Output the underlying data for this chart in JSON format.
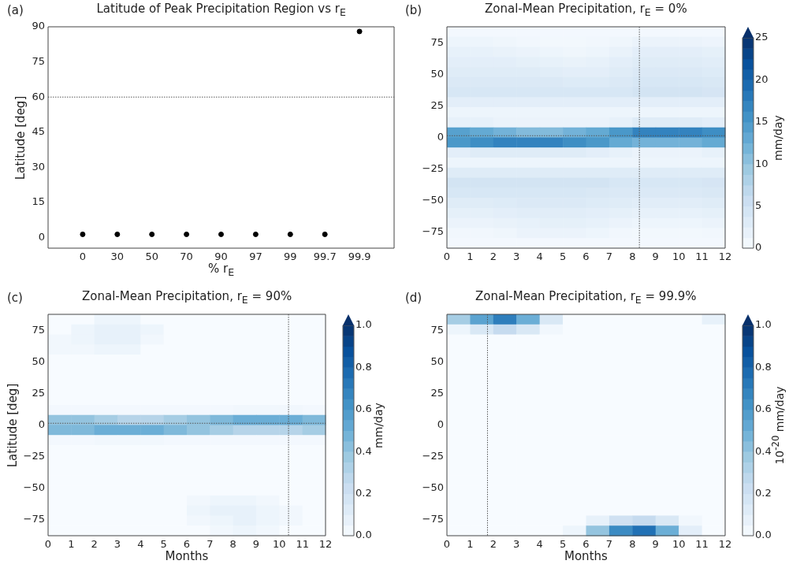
{
  "chart_data": [
    {
      "type": "scatter",
      "title": "Latitude of Peak Precipitation Region vs r$_{E}$",
      "xlabel": "% r$_{E}$",
      "ylabel": "Latitude [deg]",
      "annotations": [
        "(a)"
      ],
      "categories": [
        "0",
        "30",
        "50",
        "70",
        "90",
        "97",
        "99",
        "99.7",
        "99.9"
      ],
      "values": [
        1.4,
        1.4,
        1.4,
        1.4,
        1.4,
        1.4,
        1.4,
        1.4,
        88
      ],
      "color": "#000000",
      "marker": "circle",
      "ylim": [
        -4.5,
        90
      ],
      "yticks": [
        0,
        15,
        30,
        45,
        60,
        75,
        90
      ],
      "ref_lines": [
        {
          "axis": "y",
          "value": 60,
          "color": "#555555",
          "line_style": "dotted"
        }
      ]
    },
    {
      "type": "scatter",
      "title": "Zonal-Mean Precipitation, r$_{E}$ = 0%",
      "annotations": [
        "(b)"
      ],
      "clabel": "mm/day",
      "marker": "square",
      "xlim": [
        0,
        12
      ],
      "xticks": [
        0,
        1,
        2,
        3,
        4,
        5,
        6,
        7,
        8,
        9,
        10,
        11,
        12
      ],
      "ylim": [
        -88,
        88
      ],
      "yticks": [
        {
          "value": -75,
          "label": "−75"
        },
        {
          "value": -50,
          "label": "−50"
        },
        {
          "value": -25,
          "label": "−25"
        },
        0,
        25,
        50,
        75
      ],
      "clim": [
        0,
        25
      ],
      "cticks": [
        0,
        5,
        10,
        15,
        20,
        25
      ],
      "ref_lines": [
        {
          "axis": "x",
          "value": 8.3,
          "color": "#555555",
          "line_style": "dotted"
        },
        {
          "axis": "y",
          "value": 1.4,
          "color": "#555555",
          "line_style": "dotted"
        }
      ],
      "x": [
        0.5,
        1.5,
        2.5,
        3.5,
        4.5,
        5.5,
        6.5,
        7.5,
        8.5,
        9.5,
        10.5,
        11.5,
        0.5,
        1.5,
        2.5,
        3.5,
        4.5,
        5.5,
        6.5,
        7.5,
        8.5,
        9.5,
        10.5,
        11.5,
        0.5,
        1.5,
        2.5,
        3.5,
        4.5,
        5.5,
        6.5,
        7.5,
        8.5,
        9.5,
        10.5,
        11.5,
        0.5,
        1.5,
        2.5,
        3.5,
        4.5,
        5.5,
        6.5,
        7.5,
        8.5,
        9.5,
        10.5,
        11.5,
        0.5,
        1.5,
        2.5,
        3.5,
        4.5,
        5.5,
        6.5,
        7.5,
        8.5,
        9.5,
        10.5,
        11.5,
        0.5,
        1.5,
        2.5,
        3.5,
        4.5,
        5.5,
        6.5,
        7.5,
        8.5,
        9.5,
        10.5,
        11.5,
        0.5,
        1.5,
        2.5,
        3.5,
        4.5,
        5.5,
        6.5,
        7.5,
        8.5,
        9.5,
        10.5,
        11.5,
        0.5,
        1.5,
        2.5,
        3.5,
        4.5,
        5.5,
        6.5,
        7.5,
        8.5,
        9.5,
        10.5,
        11.5,
        0.5,
        1.5,
        2.5,
        3.5,
        4.5,
        5.5,
        6.5,
        7.5,
        8.5,
        9.5,
        10.5,
        11.5,
        0.5,
        1.5,
        2.5,
        3.5,
        4.5,
        5.5,
        6.5,
        7.5,
        8.5,
        9.5,
        10.5,
        11.5,
        0.5,
        1.5,
        2.5,
        3.5,
        4.5,
        5.5,
        6.5,
        7.5,
        8.5,
        9.5,
        10.5,
        11.5,
        0.5,
        1.5,
        2.5,
        3.5,
        4.5,
        5.5,
        6.5,
        7.5,
        8.5,
        9.5,
        10.5,
        11.5,
        0.5,
        1.5,
        2.5,
        3.5,
        4.5,
        5.5,
        6.5,
        7.5,
        8.5,
        9.5,
        10.5,
        11.5,
        0.5,
        1.5,
        2.5,
        3.5,
        4.5,
        5.5,
        6.5,
        7.5,
        8.5,
        9.5,
        10.5,
        11.5,
        0.5,
        1.5,
        2.5,
        3.5,
        4.5,
        5.5,
        6.5,
        7.5,
        8.5,
        9.5,
        10.5,
        11.5,
        0.5,
        1.5,
        2.5,
        3.5,
        4.5,
        5.5,
        6.5,
        7.5,
        8.5,
        9.5,
        10.5,
        11.5,
        0.5,
        1.5,
        2.5,
        3.5,
        4.5,
        5.5,
        6.5,
        7.5,
        8.5,
        9.5,
        10.5,
        11.5,
        0.5,
        1.5,
        2.5,
        3.5,
        4.5,
        5.5,
        6.5,
        7.5,
        8.5,
        9.5,
        10.5,
        11.5,
        0.5,
        1.5,
        2.5,
        3.5,
        4.5,
        5.5,
        6.5,
        7.5,
        8.5,
        9.5,
        10.5,
        11.5,
        0.5,
        1.5,
        2.5,
        3.5,
        4.5,
        5.5,
        6.5,
        7.5,
        8.5,
        9.5,
        10.5,
        11.5,
        0.5,
        1.5,
        2.5,
        3.5,
        4.5,
        5.5,
        6.5,
        7.5,
        8.5,
        9.5,
        10.5,
        11.5,
        0.5,
        1.5,
        2.5,
        3.5,
        4.5,
        5.5,
        6.5,
        7.5,
        8.5,
        9.5,
        10.5,
        11.5
      ],
      "values": [
        84,
        84,
        84,
        84,
        84,
        84,
        84,
        84,
        84,
        84,
        84,
        84,
        76,
        76,
        76,
        76,
        76,
        76,
        76,
        76,
        76,
        76,
        76,
        76,
        68,
        68,
        68,
        68,
        68,
        68,
        68,
        68,
        68,
        68,
        68,
        68,
        60,
        60,
        60,
        60,
        60,
        60,
        60,
        60,
        60,
        60,
        60,
        60,
        52,
        52,
        52,
        52,
        52,
        52,
        52,
        52,
        52,
        52,
        52,
        52,
        44,
        44,
        44,
        44,
        44,
        44,
        44,
        44,
        44,
        44,
        44,
        44,
        36,
        36,
        36,
        36,
        36,
        36,
        36,
        36,
        36,
        36,
        36,
        36,
        28,
        28,
        28,
        28,
        28,
        28,
        28,
        28,
        28,
        28,
        28,
        28,
        20,
        20,
        20,
        20,
        20,
        20,
        20,
        20,
        20,
        20,
        20,
        20,
        12,
        12,
        12,
        12,
        12,
        12,
        12,
        12,
        12,
        12,
        12,
        12,
        4,
        4,
        4,
        4,
        4,
        4,
        4,
        4,
        4,
        4,
        4,
        4,
        -4,
        -4,
        -4,
        -4,
        -4,
        -4,
        -4,
        -4,
        -4,
        -4,
        -4,
        -4,
        -12,
        -12,
        -12,
        -12,
        -12,
        -12,
        -12,
        -12,
        -12,
        -12,
        -12,
        -12,
        -20,
        -20,
        -20,
        -20,
        -20,
        -20,
        -20,
        -20,
        -20,
        -20,
        -20,
        -20,
        -28,
        -28,
        -28,
        -28,
        -28,
        -28,
        -28,
        -28,
        -28,
        -28,
        -28,
        -28,
        -36,
        -36,
        -36,
        -36,
        -36,
        -36,
        -36,
        -36,
        -36,
        -36,
        -36,
        -36,
        -44,
        -44,
        -44,
        -44,
        -44,
        -44,
        -44,
        -44,
        -44,
        -44,
        -44,
        -44,
        -52,
        -52,
        -52,
        -52,
        -52,
        -52,
        -52,
        -52,
        -52,
        -52,
        -52,
        -52,
        -60,
        -60,
        -60,
        -60,
        -60,
        -60,
        -60,
        -60,
        -60,
        -60,
        -60,
        -60,
        -68,
        -68,
        -68,
        -68,
        -68,
        -68,
        -68,
        -68,
        -68,
        -68,
        -68,
        -68,
        -76,
        -76,
        -76,
        -76,
        -76,
        -76,
        -76,
        -76,
        -76,
        -76,
        -76,
        -76,
        -84,
        -84,
        -84,
        -84,
        -84,
        -84,
        -84,
        -84,
        -84,
        -84,
        -84,
        -84
      ],
      "cvalues": [
        0.5,
        0.5,
        0.5,
        0.5,
        0.5,
        0.5,
        0.5,
        0.5,
        0.5,
        0.5,
        0.5,
        0.5,
        1.2,
        1.2,
        1,
        0.8,
        0.6,
        0.6,
        0.8,
        1,
        1.5,
        1.5,
        1.5,
        1.3,
        2,
        2,
        1.8,
        1.5,
        1.2,
        1,
        1.2,
        1.8,
        2.5,
        2.5,
        2.5,
        2.2,
        2.5,
        2.5,
        2.5,
        2.2,
        2,
        1.8,
        2,
        2.5,
        3,
        3,
        3,
        2.8,
        3,
        3,
        3,
        3,
        2.8,
        2.5,
        2.5,
        3,
        3.5,
        3.5,
        3.5,
        3.2,
        3.5,
        3.5,
        3.5,
        3.5,
        3.5,
        3.2,
        3.2,
        3.5,
        4,
        4,
        4,
        3.8,
        4,
        4,
        4,
        4,
        4,
        4,
        4,
        4,
        4.5,
        4.5,
        4.5,
        4.2,
        2.5,
        2.5,
        2.5,
        2.5,
        2.5,
        2.5,
        2.5,
        2.5,
        2.5,
        2.5,
        2.5,
        2.5,
        1.2,
        1.2,
        1.2,
        1.2,
        1.2,
        1.2,
        1.2,
        1.2,
        1.2,
        1.2,
        1.2,
        1.2,
        2,
        2,
        1.5,
        1.5,
        1.5,
        1.5,
        1.5,
        2,
        3,
        3,
        3,
        2.5,
        14,
        13,
        12,
        11,
        11,
        12,
        13,
        15,
        17,
        17,
        17,
        16,
        15,
        16,
        17,
        17,
        17,
        16,
        15,
        13,
        12,
        12,
        12,
        13,
        2.5,
        3,
        3,
        3,
        3,
        3,
        2.5,
        2,
        1.5,
        1.5,
        1.5,
        2,
        1.2,
        1.2,
        1.2,
        1.2,
        1.2,
        1.2,
        1.2,
        1.2,
        1.2,
        1.2,
        1.2,
        1.2,
        3,
        3,
        3,
        3,
        3,
        3,
        3,
        3,
        3,
        3,
        3,
        3,
        4.5,
        4.5,
        4.5,
        4.5,
        4.5,
        4.5,
        4.5,
        4,
        4,
        4,
        4,
        4.2,
        4,
        4,
        4,
        4,
        4,
        4,
        3.8,
        3.5,
        3.5,
        3.5,
        3.5,
        3.8,
        3,
        3,
        3.2,
        3.5,
        3.5,
        3.5,
        3.2,
        3,
        2.8,
        2.8,
        2.8,
        3,
        2.2,
        2.2,
        2.5,
        2.8,
        2.8,
        2.8,
        2.5,
        2.2,
        2,
        2,
        2,
        2.2,
        1.5,
        1.5,
        1.8,
        2,
        2.2,
        2.2,
        2,
        1.5,
        1.2,
        1.2,
        1.2,
        1.5,
        0.8,
        0.8,
        1,
        1.5,
        1.5,
        1.5,
        1.2,
        0.8,
        0.6,
        0.6,
        0.6,
        0.8,
        0.5,
        0.5,
        0.5,
        0.5,
        0.5,
        0.5,
        0.5,
        0.5,
        0.5,
        0.5,
        0.5,
        0.5
      ]
    },
    {
      "type": "scatter",
      "title": "Zonal-Mean Precipitation, r$_{E}$ = 90%",
      "xlabel": "Months",
      "ylabel": "Latitude [deg]",
      "annotations": [
        "(c)"
      ],
      "clabel": "mm/day",
      "marker": "square",
      "xlim": [
        0,
        12
      ],
      "xticks": [
        0,
        1,
        2,
        3,
        4,
        5,
        6,
        7,
        8,
        9,
        10,
        11,
        12
      ],
      "ylim": [
        -88,
        88
      ],
      "yticks": [
        {
          "value": -75,
          "label": "−75"
        },
        {
          "value": -50,
          "label": "−50"
        },
        {
          "value": -25,
          "label": "−25"
        },
        0,
        25,
        50,
        75
      ],
      "clim": [
        0,
        1
      ],
      "cticks": [
        {
          "value": 0,
          "label": "0.0"
        },
        {
          "value": 0.2,
          "label": "0.2"
        },
        {
          "value": 0.4,
          "label": "0.4"
        },
        {
          "value": 0.6,
          "label": "0.6"
        },
        {
          "value": 0.8,
          "label": "0.8"
        },
        {
          "value": 1,
          "label": "1.0"
        }
      ],
      "ref_lines": [
        {
          "axis": "x",
          "value": 10.4,
          "color": "#555555",
          "line_style": "dotted"
        },
        {
          "axis": "y",
          "value": 1.4,
          "color": "#555555",
          "line_style": "dotted"
        }
      ],
      "x": [
        0.5,
        1.5,
        2.5,
        3.5,
        4.5,
        5.5,
        6.5,
        7.5,
        8.5,
        9.5,
        10.5,
        11.5,
        0.5,
        1.5,
        2.5,
        3.5,
        4.5,
        5.5,
        6.5,
        7.5,
        8.5,
        9.5,
        10.5,
        11.5,
        0.5,
        1.5,
        2.5,
        3.5,
        4.5,
        5.5,
        6.5,
        7.5,
        8.5,
        9.5,
        10.5,
        11.5,
        0.5,
        1.5,
        2.5,
        3.5,
        4.5,
        5.5,
        6.5,
        7.5,
        8.5,
        9.5,
        10.5,
        11.5,
        0.5,
        1.5,
        2.5,
        3.5,
        4.5,
        5.5,
        6.5,
        7.5,
        8.5,
        9.5,
        10.5,
        11.5,
        0.5,
        1.5,
        2.5,
        3.5,
        4.5,
        5.5,
        6.5,
        7.5,
        8.5,
        9.5,
        10.5,
        11.5,
        0.5,
        1.5,
        2.5,
        3.5,
        4.5,
        5.5,
        6.5,
        7.5,
        8.5,
        9.5,
        10.5,
        11.5,
        0.5,
        1.5,
        2.5,
        3.5,
        4.5,
        5.5,
        6.5,
        7.5,
        8.5,
        9.5,
        10.5,
        11.5,
        0.5,
        1.5,
        2.5,
        3.5,
        4.5,
        5.5,
        6.5,
        7.5,
        8.5,
        9.5,
        10.5,
        11.5,
        0.5,
        1.5,
        2.5,
        3.5,
        4.5,
        5.5,
        6.5,
        7.5,
        8.5,
        9.5,
        10.5,
        11.5,
        0.5,
        1.5,
        2.5,
        3.5,
        4.5,
        5.5,
        6.5,
        7.5,
        8.5,
        9.5,
        10.5,
        11.5,
        0.5,
        1.5,
        2.5,
        3.5,
        4.5,
        5.5,
        6.5,
        7.5,
        8.5,
        9.5,
        10.5,
        11.5,
        0.5,
        1.5,
        2.5,
        3.5,
        4.5,
        5.5,
        6.5,
        7.5,
        8.5,
        9.5,
        10.5,
        11.5,
        0.5,
        1.5,
        2.5,
        3.5,
        4.5,
        5.5,
        6.5,
        7.5,
        8.5,
        9.5,
        10.5,
        11.5,
        0.5,
        1.5,
        2.5,
        3.5,
        4.5,
        5.5,
        6.5,
        7.5,
        8.5,
        9.5,
        10.5,
        11.5,
        0.5,
        1.5,
        2.5,
        3.5,
        4.5,
        5.5,
        6.5,
        7.5,
        8.5,
        9.5,
        10.5,
        11.5,
        0.5,
        1.5,
        2.5,
        3.5,
        4.5,
        5.5,
        6.5,
        7.5,
        8.5,
        9.5,
        10.5,
        11.5,
        0.5,
        1.5,
        2.5,
        3.5,
        4.5,
        5.5,
        6.5,
        7.5,
        8.5,
        9.5,
        10.5,
        11.5,
        0.5,
        1.5,
        2.5,
        3.5,
        4.5,
        5.5,
        6.5,
        7.5,
        8.5,
        9.5,
        10.5,
        11.5,
        0.5,
        1.5,
        2.5,
        3.5,
        4.5,
        5.5,
        6.5,
        7.5,
        8.5,
        9.5,
        10.5,
        11.5,
        0.5,
        1.5,
        2.5,
        3.5,
        4.5,
        5.5,
        6.5,
        7.5,
        8.5,
        9.5,
        10.5,
        11.5,
        0.5,
        1.5,
        2.5,
        3.5,
        4.5,
        5.5,
        6.5,
        7.5,
        8.5,
        9.5,
        10.5,
        11.5
      ],
      "values": [
        84,
        84,
        84,
        84,
        84,
        84,
        84,
        84,
        84,
        84,
        84,
        84,
        76,
        76,
        76,
        76,
        76,
        76,
        76,
        76,
        76,
        76,
        76,
        76,
        68,
        68,
        68,
        68,
        68,
        68,
        68,
        68,
        68,
        68,
        68,
        68,
        60,
        60,
        60,
        60,
        60,
        60,
        60,
        60,
        60,
        60,
        60,
        60,
        52,
        52,
        52,
        52,
        52,
        52,
        52,
        52,
        52,
        52,
        52,
        52,
        44,
        44,
        44,
        44,
        44,
        44,
        44,
        44,
        44,
        44,
        44,
        44,
        36,
        36,
        36,
        36,
        36,
        36,
        36,
        36,
        36,
        36,
        36,
        36,
        28,
        28,
        28,
        28,
        28,
        28,
        28,
        28,
        28,
        28,
        28,
        28,
        20,
        20,
        20,
        20,
        20,
        20,
        20,
        20,
        20,
        20,
        20,
        20,
        12,
        12,
        12,
        12,
        12,
        12,
        12,
        12,
        12,
        12,
        12,
        12,
        4,
        4,
        4,
        4,
        4,
        4,
        4,
        4,
        4,
        4,
        4,
        4,
        -4,
        -4,
        -4,
        -4,
        -4,
        -4,
        -4,
        -4,
        -4,
        -4,
        -4,
        -4,
        -12,
        -12,
        -12,
        -12,
        -12,
        -12,
        -12,
        -12,
        -12,
        -12,
        -12,
        -12,
        -20,
        -20,
        -20,
        -20,
        -20,
        -20,
        -20,
        -20,
        -20,
        -20,
        -20,
        -20,
        -28,
        -28,
        -28,
        -28,
        -28,
        -28,
        -28,
        -28,
        -28,
        -28,
        -28,
        -28,
        -36,
        -36,
        -36,
        -36,
        -36,
        -36,
        -36,
        -36,
        -36,
        -36,
        -36,
        -36,
        -44,
        -44,
        -44,
        -44,
        -44,
        -44,
        -44,
        -44,
        -44,
        -44,
        -44,
        -44,
        -52,
        -52,
        -52,
        -52,
        -52,
        -52,
        -52,
        -52,
        -52,
        -52,
        -52,
        -52,
        -60,
        -60,
        -60,
        -60,
        -60,
        -60,
        -60,
        -60,
        -60,
        -60,
        -60,
        -60,
        -68,
        -68,
        -68,
        -68,
        -68,
        -68,
        -68,
        -68,
        -68,
        -68,
        -68,
        -68,
        -76,
        -76,
        -76,
        -76,
        -76,
        -76,
        -76,
        -76,
        -76,
        -76,
        -76,
        -76,
        -84,
        -84,
        -84,
        -84,
        -84,
        -84,
        -84,
        -84,
        -84,
        -84,
        -84,
        -84
      ],
      "cvalues": [
        0,
        0,
        0.05,
        0.05,
        0,
        0,
        0,
        0,
        0,
        0,
        0,
        0,
        0,
        0.05,
        0.08,
        0.08,
        0.05,
        0,
        0,
        0,
        0,
        0,
        0,
        0,
        0.03,
        0.05,
        0.08,
        0.08,
        0.03,
        0,
        0,
        0,
        0,
        0,
        0,
        0,
        0.03,
        0.03,
        0.05,
        0.05,
        0,
        0,
        0,
        0,
        0,
        0,
        0,
        0,
        0,
        0,
        0,
        0,
        0,
        0,
        0,
        0,
        0,
        0,
        0,
        0,
        0,
        0,
        0,
        0,
        0,
        0,
        0,
        0,
        0,
        0,
        0,
        0,
        0,
        0,
        0,
        0,
        0,
        0,
        0,
        0,
        0,
        0,
        0,
        0,
        0,
        0,
        0,
        0,
        0,
        0,
        0,
        0,
        0,
        0,
        0,
        0,
        0,
        0,
        0,
        0,
        0,
        0,
        0,
        0,
        0,
        0,
        0,
        0,
        0.02,
        0.02,
        0.02,
        0.02,
        0.02,
        0.02,
        0.02,
        0.02,
        0.03,
        0.03,
        0.03,
        0.02,
        0.4,
        0.4,
        0.35,
        0.3,
        0.3,
        0.35,
        0.4,
        0.45,
        0.5,
        0.5,
        0.5,
        0.45,
        0.45,
        0.45,
        0.5,
        0.5,
        0.5,
        0.45,
        0.4,
        0.35,
        0.3,
        0.3,
        0.3,
        0.35,
        0.02,
        0.02,
        0.03,
        0.03,
        0.03,
        0.02,
        0.02,
        0.02,
        0.02,
        0.02,
        0.02,
        0.02,
        0,
        0,
        0,
        0,
        0,
        0,
        0,
        0,
        0,
        0,
        0,
        0,
        0,
        0,
        0,
        0,
        0,
        0,
        0,
        0,
        0,
        0,
        0,
        0,
        0,
        0,
        0,
        0,
        0,
        0,
        0,
        0,
        0,
        0,
        0,
        0,
        0,
        0,
        0,
        0,
        0,
        0,
        0,
        0,
        0,
        0,
        0,
        0,
        0,
        0,
        0,
        0,
        0,
        0,
        0,
        0,
        0,
        0,
        0,
        0,
        0,
        0,
        0,
        0,
        0,
        0,
        0.03,
        0.05,
        0.05,
        0.03,
        0,
        0,
        0,
        0,
        0,
        0,
        0,
        0,
        0.05,
        0.08,
        0.08,
        0.05,
        0.03,
        0,
        0,
        0,
        0,
        0,
        0,
        0,
        0.03,
        0.05,
        0.08,
        0.05,
        0.03,
        0,
        0,
        0,
        0,
        0,
        0,
        0,
        0,
        0.03,
        0.05,
        0.03,
        0,
        0
      ]
    },
    {
      "type": "scatter",
      "title": "Zonal-Mean Precipitation, r$_{E}$ = 99.9%",
      "xlabel": "Months",
      "annotations": [
        "(d)"
      ],
      "clabel": "10$^{-20}$ mm/day",
      "marker": "square",
      "xlim": [
        0,
        12
      ],
      "xticks": [
        0,
        1,
        2,
        3,
        4,
        5,
        6,
        7,
        8,
        9,
        10,
        11,
        12
      ],
      "ylim": [
        -88,
        88
      ],
      "yticks": [
        {
          "value": -75,
          "label": "−75"
        },
        {
          "value": -50,
          "label": "−50"
        },
        {
          "value": -25,
          "label": "−25"
        },
        0,
        25,
        50,
        75
      ],
      "clim": [
        0,
        1
      ],
      "cticks": [
        {
          "value": 0,
          "label": "0.0"
        },
        {
          "value": 0.2,
          "label": "0.2"
        },
        {
          "value": 0.4,
          "label": "0.4"
        },
        {
          "value": 0.6,
          "label": "0.6"
        },
        {
          "value": 0.8,
          "label": "0.8"
        },
        {
          "value": 1,
          "label": "1.0"
        }
      ],
      "ref_lines": [
        {
          "axis": "x",
          "value": 1.75,
          "color": "#555555",
          "line_style": "dotted"
        }
      ],
      "x": [
        0.5,
        1.5,
        2.5,
        3.5,
        4.5,
        5.5,
        6.5,
        7.5,
        8.5,
        9.5,
        10.5,
        11.5,
        0.5,
        1.5,
        2.5,
        3.5,
        4.5,
        5.5,
        6.5,
        7.5,
        8.5,
        9.5,
        10.5,
        11.5,
        0.5,
        1.5,
        2.5,
        3.5,
        4.5,
        5.5,
        6.5,
        7.5,
        8.5,
        9.5,
        10.5,
        11.5,
        0.5,
        1.5,
        2.5,
        3.5,
        4.5,
        5.5,
        6.5,
        7.5,
        8.5,
        9.5,
        10.5,
        11.5,
        0.5,
        1.5,
        2.5,
        3.5,
        4.5,
        5.5,
        6.5,
        7.5,
        8.5,
        9.5,
        10.5,
        11.5,
        0.5,
        1.5,
        2.5,
        3.5,
        4.5,
        5.5,
        6.5,
        7.5,
        8.5,
        9.5,
        10.5,
        11.5,
        0.5,
        1.5,
        2.5,
        3.5,
        4.5,
        5.5,
        6.5,
        7.5,
        8.5,
        9.5,
        10.5,
        11.5,
        0.5,
        1.5,
        2.5,
        3.5,
        4.5,
        5.5,
        6.5,
        7.5,
        8.5,
        9.5,
        10.5,
        11.5,
        0.5,
        1.5,
        2.5,
        3.5,
        4.5,
        5.5,
        6.5,
        7.5,
        8.5,
        9.5,
        10.5,
        11.5,
        0.5,
        1.5,
        2.5,
        3.5,
        4.5,
        5.5,
        6.5,
        7.5,
        8.5,
        9.5,
        10.5,
        11.5,
        0.5,
        1.5,
        2.5,
        3.5,
        4.5,
        5.5,
        6.5,
        7.5,
        8.5,
        9.5,
        10.5,
        11.5,
        0.5,
        1.5,
        2.5,
        3.5,
        4.5,
        5.5,
        6.5,
        7.5,
        8.5,
        9.5,
        10.5,
        11.5,
        0.5,
        1.5,
        2.5,
        3.5,
        4.5,
        5.5,
        6.5,
        7.5,
        8.5,
        9.5,
        10.5,
        11.5,
        0.5,
        1.5,
        2.5,
        3.5,
        4.5,
        5.5,
        6.5,
        7.5,
        8.5,
        9.5,
        10.5,
        11.5,
        0.5,
        1.5,
        2.5,
        3.5,
        4.5,
        5.5,
        6.5,
        7.5,
        8.5,
        9.5,
        10.5,
        11.5,
        0.5,
        1.5,
        2.5,
        3.5,
        4.5,
        5.5,
        6.5,
        7.5,
        8.5,
        9.5,
        10.5,
        11.5,
        0.5,
        1.5,
        2.5,
        3.5,
        4.5,
        5.5,
        6.5,
        7.5,
        8.5,
        9.5,
        10.5,
        11.5,
        0.5,
        1.5,
        2.5,
        3.5,
        4.5,
        5.5,
        6.5,
        7.5,
        8.5,
        9.5,
        10.5,
        11.5,
        0.5,
        1.5,
        2.5,
        3.5,
        4.5,
        5.5,
        6.5,
        7.5,
        8.5,
        9.5,
        10.5,
        11.5,
        0.5,
        1.5,
        2.5,
        3.5,
        4.5,
        5.5,
        6.5,
        7.5,
        8.5,
        9.5,
        10.5,
        11.5,
        0.5,
        1.5,
        2.5,
        3.5,
        4.5,
        5.5,
        6.5,
        7.5,
        8.5,
        9.5,
        10.5,
        11.5,
        0.5,
        1.5,
        2.5,
        3.5,
        4.5,
        5.5,
        6.5,
        7.5,
        8.5,
        9.5,
        10.5,
        11.5
      ],
      "values": [
        84,
        84,
        84,
        84,
        84,
        84,
        84,
        84,
        84,
        84,
        84,
        84,
        76,
        76,
        76,
        76,
        76,
        76,
        76,
        76,
        76,
        76,
        76,
        76,
        68,
        68,
        68,
        68,
        68,
        68,
        68,
        68,
        68,
        68,
        68,
        68,
        60,
        60,
        60,
        60,
        60,
        60,
        60,
        60,
        60,
        60,
        60,
        60,
        52,
        52,
        52,
        52,
        52,
        52,
        52,
        52,
        52,
        52,
        52,
        52,
        44,
        44,
        44,
        44,
        44,
        44,
        44,
        44,
        44,
        44,
        44,
        44,
        36,
        36,
        36,
        36,
        36,
        36,
        36,
        36,
        36,
        36,
        36,
        36,
        28,
        28,
        28,
        28,
        28,
        28,
        28,
        28,
        28,
        28,
        28,
        28,
        20,
        20,
        20,
        20,
        20,
        20,
        20,
        20,
        20,
        20,
        20,
        20,
        12,
        12,
        12,
        12,
        12,
        12,
        12,
        12,
        12,
        12,
        12,
        12,
        4,
        4,
        4,
        4,
        4,
        4,
        4,
        4,
        4,
        4,
        4,
        4,
        -4,
        -4,
        -4,
        -4,
        -4,
        -4,
        -4,
        -4,
        -4,
        -4,
        -4,
        -4,
        -12,
        -12,
        -12,
        -12,
        -12,
        -12,
        -12,
        -12,
        -12,
        -12,
        -12,
        -12,
        -20,
        -20,
        -20,
        -20,
        -20,
        -20,
        -20,
        -20,
        -20,
        -20,
        -20,
        -20,
        -28,
        -28,
        -28,
        -28,
        -28,
        -28,
        -28,
        -28,
        -28,
        -28,
        -28,
        -28,
        -36,
        -36,
        -36,
        -36,
        -36,
        -36,
        -36,
        -36,
        -36,
        -36,
        -36,
        -36,
        -44,
        -44,
        -44,
        -44,
        -44,
        -44,
        -44,
        -44,
        -44,
        -44,
        -44,
        -44,
        -52,
        -52,
        -52,
        -52,
        -52,
        -52,
        -52,
        -52,
        -52,
        -52,
        -52,
        -52,
        -60,
        -60,
        -60,
        -60,
        -60,
        -60,
        -60,
        -60,
        -60,
        -60,
        -60,
        -60,
        -68,
        -68,
        -68,
        -68,
        -68,
        -68,
        -68,
        -68,
        -68,
        -68,
        -68,
        -68,
        -76,
        -76,
        -76,
        -76,
        -76,
        -76,
        -76,
        -76,
        -76,
        -76,
        -76,
        -76,
        -84,
        -84,
        -84,
        -84,
        -84,
        -84,
        -84,
        -84,
        -84,
        -84,
        -84,
        -84
      ],
      "cvalues": [
        0.35,
        0.55,
        0.7,
        0.5,
        0.15,
        0,
        0,
        0,
        0,
        0,
        0,
        0.08,
        0.05,
        0.15,
        0.25,
        0.15,
        0.03,
        0,
        0,
        0,
        0,
        0,
        0,
        0,
        0,
        0,
        0,
        0,
        0,
        0,
        0,
        0,
        0,
        0,
        0,
        0,
        0,
        0,
        0,
        0,
        0,
        0,
        0,
        0,
        0,
        0,
        0,
        0,
        0,
        0,
        0,
        0,
        0,
        0,
        0,
        0,
        0,
        0,
        0,
        0,
        0,
        0,
        0,
        0,
        0,
        0,
        0,
        0,
        0,
        0,
        0,
        0,
        0,
        0,
        0,
        0,
        0,
        0,
        0,
        0,
        0,
        0,
        0,
        0,
        0,
        0,
        0,
        0,
        0,
        0,
        0,
        0,
        0,
        0,
        0,
        0,
        0,
        0,
        0,
        0,
        0,
        0,
        0,
        0,
        0,
        0,
        0,
        0,
        0,
        0,
        0,
        0,
        0,
        0,
        0,
        0,
        0,
        0,
        0,
        0,
        0,
        0,
        0,
        0,
        0,
        0,
        0,
        0,
        0,
        0,
        0,
        0,
        0,
        0,
        0,
        0,
        0,
        0,
        0,
        0,
        0,
        0,
        0,
        0,
        0,
        0,
        0,
        0,
        0,
        0,
        0,
        0,
        0,
        0,
        0,
        0,
        0,
        0,
        0,
        0,
        0,
        0,
        0,
        0,
        0,
        0,
        0,
        0,
        0,
        0,
        0,
        0,
        0,
        0,
        0,
        0,
        0,
        0,
        0,
        0,
        0,
        0,
        0,
        0,
        0,
        0,
        0,
        0,
        0,
        0,
        0,
        0,
        0,
        0,
        0,
        0,
        0,
        0,
        0,
        0,
        0,
        0,
        0,
        0,
        0,
        0,
        0,
        0,
        0,
        0,
        0,
        0,
        0,
        0,
        0,
        0,
        0,
        0,
        0,
        0,
        0,
        0,
        0,
        0,
        0,
        0,
        0,
        0,
        0,
        0,
        0,
        0,
        0,
        0,
        0,
        0,
        0,
        0,
        0,
        0,
        0,
        0,
        0,
        0,
        0,
        0,
        0.08,
        0.2,
        0.25,
        0.15,
        0.03,
        0,
        0,
        0,
        0,
        0,
        0,
        0.05,
        0.4,
        0.65,
        0.75,
        0.5,
        0.1,
        0
      ]
    }
  ]
}
